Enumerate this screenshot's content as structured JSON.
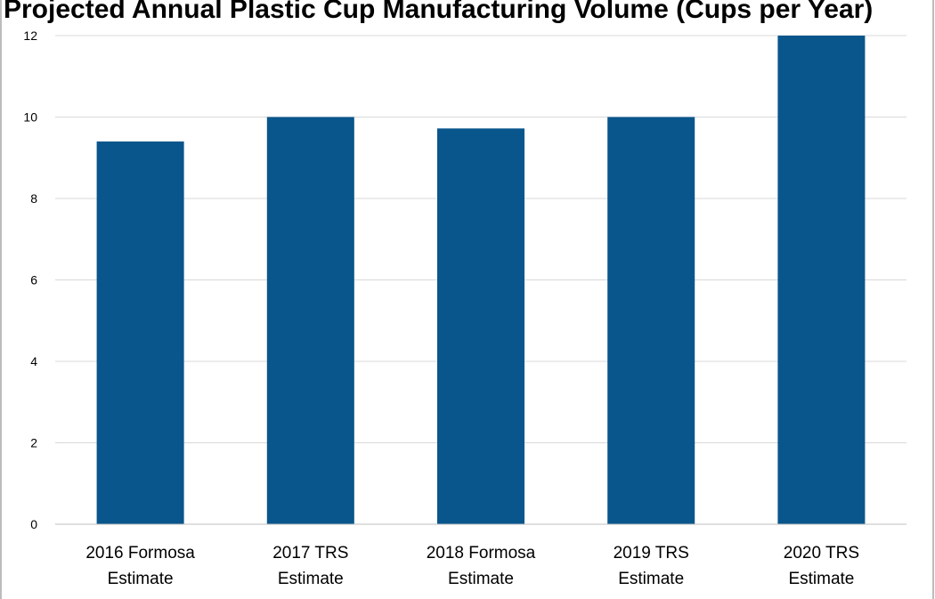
{
  "chart_data": {
    "type": "bar",
    "title": "Projected Annual Plastic Cup Manufacturing Volume (Cups per Year)",
    "xlabel": "",
    "ylabel": "",
    "categories": [
      [
        "2016 Formosa",
        "Estimate"
      ],
      [
        "2017 TRS",
        "Estimate"
      ],
      [
        "2018 Formosa",
        "Estimate"
      ],
      [
        "2019 TRS",
        "Estimate"
      ],
      [
        "2020 TRS",
        "Estimate"
      ]
    ],
    "values": [
      9.4,
      10.0,
      9.72,
      10.0,
      12.0
    ],
    "ylim": [
      0,
      12
    ],
    "yticks": [
      0,
      2,
      4,
      6,
      8,
      10,
      12
    ],
    "grid": true,
    "legend": "none",
    "colors": {
      "bar": "#08568C",
      "grid": "#D9D9D9",
      "axis": "#BFBFBF",
      "frame": "#A6A6A6"
    }
  }
}
